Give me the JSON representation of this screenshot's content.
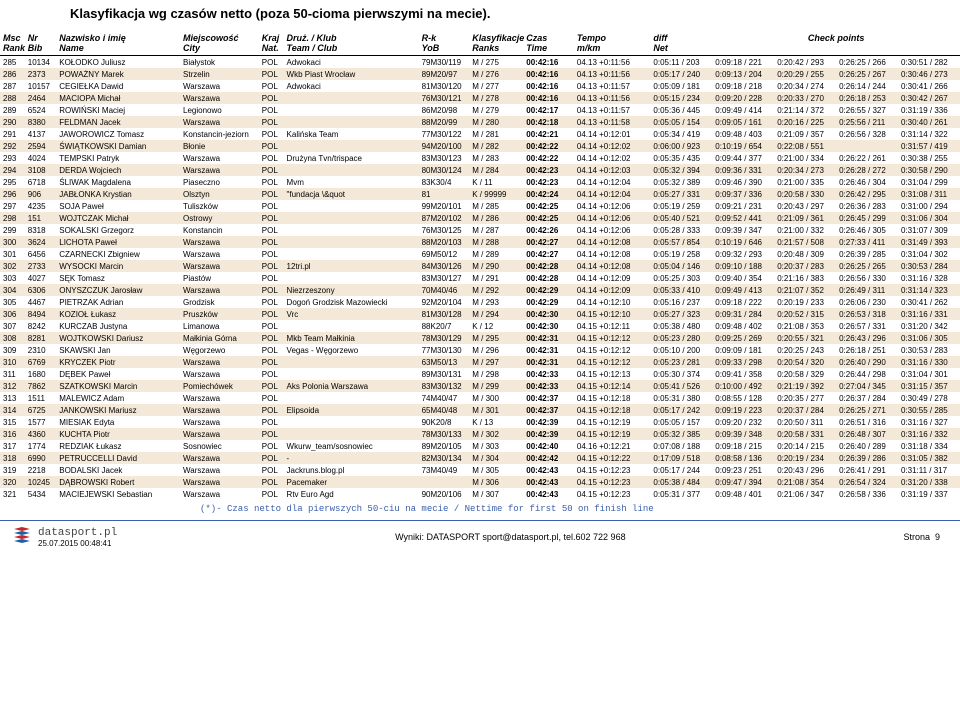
{
  "title": "Klasyfikacja wg czasów netto (poza 50-cioma pierwszymi na mecie).",
  "header": {
    "msc": "Msc",
    "rank": "Rank",
    "nr": "Nr",
    "bib": "Bib",
    "nameLabel": "Nazwisko i imię",
    "nameSub": "Name",
    "cityLabel": "Miejscowość",
    "citySub": "City",
    "krajLabel": "Kraj",
    "krajSub": "Nat.",
    "teamLabel": "Druż. / Klub",
    "teamSub": "Team / Club",
    "rkLabel": "R-k",
    "rkSub": "YoB",
    "ranksLabel": "Klasyfikacje",
    "ranksSub": "Ranks",
    "czasLabel": "Czas",
    "czasSub": "Time",
    "tempoLabel": "Tempo",
    "tempoSub": "m/km",
    "diffLabel": "diff",
    "diffSub": "Net",
    "checkLabel": "Check points"
  },
  "rows": [
    {
      "msc": "285",
      "bib": "10134",
      "name": "KOŁODKO Juliusz",
      "city": "Białystok",
      "nat": "POL",
      "team": "Adwokaci",
      "rk": "79M30/119",
      "yob": "M / 275",
      "time": "00:42:16",
      "tempo": "04.13 +0:11:56",
      "diff": "0:05:11 / 203",
      "cp": [
        "0:09:18 / 221",
        "0:20:42 / 293",
        "0:26:25 / 266",
        "0:30:51 / 282"
      ]
    },
    {
      "msc": "286",
      "bib": "2373",
      "name": "POWAŻNY Marek",
      "city": "Strzelin",
      "nat": "POL",
      "team": "Wkb Piast Wrocław",
      "rk": "89M20/97",
      "yob": "M / 276",
      "time": "00:42:16",
      "tempo": "04.13 +0:11:56",
      "diff": "0:05:17 / 240",
      "cp": [
        "0:09:13 / 204",
        "0:20:29 / 255",
        "0:26:25 / 267",
        "0:30:46 / 273"
      ]
    },
    {
      "msc": "287",
      "bib": "10157",
      "name": "CEGIEŁKA Dawid",
      "city": "Warszawa",
      "nat": "POL",
      "team": "Adwokaci",
      "rk": "81M30/120",
      "yob": "M / 277",
      "time": "00:42:16",
      "tempo": "04.13 +0:11:57",
      "diff": "0:05:09 / 181",
      "cp": [
        "0:09:18 / 218",
        "0:20:34 / 274",
        "0:26:14 / 244",
        "0:30:41 / 266"
      ]
    },
    {
      "msc": "288",
      "bib": "2464",
      "name": "MACIOPA Michał",
      "city": "Warszawa",
      "nat": "POL",
      "team": "",
      "rk": "76M30/121",
      "yob": "M / 278",
      "time": "00:42:16",
      "tempo": "04.13 +0:11:56",
      "diff": "0:05:15 / 234",
      "cp": [
        "0:09:20 / 228",
        "0:20:33 / 270",
        "0:26:18 / 253",
        "0:30:42 / 267"
      ]
    },
    {
      "msc": "289",
      "bib": "6524",
      "name": "ROWIŃSKI Maciej",
      "city": "Legionowo",
      "nat": "POL",
      "team": "",
      "rk": "86M20/98",
      "yob": "M / 279",
      "time": "00:42:17",
      "tempo": "04.13 +0:11:57",
      "diff": "0:05:36 / 445",
      "cp": [
        "0:09:49 / 414",
        "0:21:14 / 372",
        "0:26:55 / 327",
        "0:31:19 / 336"
      ]
    },
    {
      "msc": "290",
      "bib": "8380",
      "name": "FELDMAN Jacek",
      "city": "Warszawa",
      "nat": "POL",
      "team": "",
      "rk": "88M20/99",
      "yob": "M / 280",
      "time": "00:42:18",
      "tempo": "04.13 +0:11:58",
      "diff": "0:05:05 / 154",
      "cp": [
        "0:09:05 / 161",
        "0:20:16 / 225",
        "0:25:56 / 211",
        "0:30:40 / 261"
      ]
    },
    {
      "msc": "291",
      "bib": "4137",
      "name": "JAWOROWICZ Tomasz",
      "city": "Konstancin-jeziorn",
      "nat": "POL",
      "team": "Kalińska Team",
      "rk": "77M30/122",
      "yob": "M / 281",
      "time": "00:42:21",
      "tempo": "04.14 +0:12:01",
      "diff": "0:05:34 / 419",
      "cp": [
        "0:09:48 / 403",
        "0:21:09 / 357",
        "0:26:56 / 328",
        "0:31:14 / 322"
      ]
    },
    {
      "msc": "292",
      "bib": "2594",
      "name": "ŚWIĄTKOWSKI Damian",
      "city": "Błonie",
      "nat": "POL",
      "team": "",
      "rk": "94M20/100",
      "yob": "M / 282",
      "time": "00:42:22",
      "tempo": "04.14 +0:12:02",
      "diff": "0:06:00 / 923",
      "cp": [
        "0:10:19 / 654",
        "0:22:08 / 551",
        "",
        "0:31:57 / 419"
      ]
    },
    {
      "msc": "293",
      "bib": "4024",
      "name": "TEMPSKI Patryk",
      "city": "Warszawa",
      "nat": "POL",
      "team": "Drużyna Tvn/trispace",
      "rk": "83M30/123",
      "yob": "M / 283",
      "time": "00:42:22",
      "tempo": "04.14 +0:12:02",
      "diff": "0:05:35 / 435",
      "cp": [
        "0:09:44 / 377",
        "0:21:00 / 334",
        "0:26:22 / 261",
        "0:30:38 / 255"
      ]
    },
    {
      "msc": "294",
      "bib": "3108",
      "name": "DERDA Wojciech",
      "city": "Warszawa",
      "nat": "POL",
      "team": "",
      "rk": "80M30/124",
      "yob": "M / 284",
      "time": "00:42:23",
      "tempo": "04.14 +0:12:03",
      "diff": "0:05:32 / 394",
      "cp": [
        "0:09:36 / 331",
        "0:20:34 / 273",
        "0:26:28 / 272",
        "0:30:58 / 290"
      ]
    },
    {
      "msc": "295",
      "bib": "6718",
      "name": "ŚLIWAK Magdalena",
      "city": "Piaseczno",
      "nat": "POL",
      "team": "Mvm",
      "rk": "83K30/4",
      "yob": "K / 11",
      "time": "00:42:23",
      "tempo": "04.14 +0:12:04",
      "diff": "0:05:32 / 389",
      "cp": [
        "0:09:46 / 390",
        "0:21:00 / 335",
        "0:26:46 / 304",
        "0:31:04 / 299"
      ]
    },
    {
      "msc": "296",
      "bib": "906",
      "name": "JABŁONKA Krystian",
      "city": "Olsztyn",
      "nat": "POL",
      "team": "\"fundacja \\&quot",
      "rk": "81",
      "yob": "K / 99999",
      "time": "00:42:24",
      "tempo": "04.14 +0:12:04",
      "diff": "0:05:27 / 331",
      "cp": [
        "0:09:37 / 336",
        "0:20:58 / 330",
        "0:26:42 / 295",
        "0:31:08 / 311"
      ]
    },
    {
      "msc": "297",
      "bib": "4235",
      "name": "SOJA Paweł",
      "city": "Tuliszków",
      "nat": "POL",
      "team": "",
      "rk": "99M20/101",
      "yob": "M / 285",
      "time": "00:42:25",
      "tempo": "04.14 +0:12:06",
      "diff": "0:05:19 / 259",
      "cp": [
        "0:09:21 / 231",
        "0:20:43 / 297",
        "0:26:36 / 283",
        "0:31:00 / 294"
      ]
    },
    {
      "msc": "298",
      "bib": "151",
      "name": "WOJTCZAK Michał",
      "city": "Ostrowy",
      "nat": "POL",
      "team": "",
      "rk": "87M20/102",
      "yob": "M / 286",
      "time": "00:42:25",
      "tempo": "04.14 +0:12:06",
      "diff": "0:05:40 / 521",
      "cp": [
        "0:09:52 / 441",
        "0:21:09 / 361",
        "0:26:45 / 299",
        "0:31:06 / 304"
      ]
    },
    {
      "msc": "299",
      "bib": "8318",
      "name": "SOKALSKI Grzegorz",
      "city": "Konstancin",
      "nat": "POL",
      "team": "",
      "rk": "76M30/125",
      "yob": "M / 287",
      "time": "00:42:26",
      "tempo": "04.14 +0:12:06",
      "diff": "0:05:28 / 333",
      "cp": [
        "0:09:39 / 347",
        "0:21:00 / 332",
        "0:26:46 / 305",
        "0:31:07 / 309"
      ]
    },
    {
      "msc": "300",
      "bib": "3624",
      "name": "LICHOTA Paweł",
      "city": "Warszawa",
      "nat": "POL",
      "team": "",
      "rk": "88M20/103",
      "yob": "M / 288",
      "time": "00:42:27",
      "tempo": "04.14 +0:12:08",
      "diff": "0:05:57 / 854",
      "cp": [
        "0:10:19 / 646",
        "0:21:57 / 508",
        "0:27:33 / 411",
        "0:31:49 / 393"
      ]
    },
    {
      "msc": "301",
      "bib": "6456",
      "name": "CZARNECKI Zbigniew",
      "city": "Warszawa",
      "nat": "POL",
      "team": "",
      "rk": "69M50/12",
      "yob": "M / 289",
      "time": "00:42:27",
      "tempo": "04.14 +0:12:08",
      "diff": "0:05:19 / 258",
      "cp": [
        "0:09:32 / 293",
        "0:20:48 / 309",
        "0:26:39 / 285",
        "0:31:04 / 302"
      ]
    },
    {
      "msc": "302",
      "bib": "2733",
      "name": "WYSOCKI Marcin",
      "city": "Warszawa",
      "nat": "POL",
      "team": "12tri.pl",
      "rk": "84M30/126",
      "yob": "M / 290",
      "time": "00:42:28",
      "tempo": "04.14 +0:12:08",
      "diff": "0:05:04 / 146",
      "cp": [
        "0:09:10 / 188",
        "0:20:37 / 283",
        "0:26:25 / 265",
        "0:30:53 / 284"
      ]
    },
    {
      "msc": "303",
      "bib": "4027",
      "name": "SĘK Tomasz",
      "city": "Piastów",
      "nat": "POL",
      "team": "",
      "rk": "83M30/127",
      "yob": "M / 291",
      "time": "00:42:28",
      "tempo": "04.14 +0:12:09",
      "diff": "0:05:25 / 303",
      "cp": [
        "0:09:40 / 354",
        "0:21:16 / 383",
        "0:26:56 / 330",
        "0:31:16 / 328"
      ]
    },
    {
      "msc": "304",
      "bib": "6306",
      "name": "ONYSZCZUK Jarosław",
      "city": "Warszawa",
      "nat": "POL",
      "team": "Niezrzeszony",
      "rk": "70M40/46",
      "yob": "M / 292",
      "time": "00:42:29",
      "tempo": "04.14 +0:12:09",
      "diff": "0:05:33 / 410",
      "cp": [
        "0:09:49 / 413",
        "0:21:07 / 352",
        "0:26:49 / 311",
        "0:31:14 / 323"
      ]
    },
    {
      "msc": "305",
      "bib": "4467",
      "name": "PIETRZAK Adrian",
      "city": "Grodzisk",
      "nat": "POL",
      "team": "Dogoń Grodzisk Mazowiecki",
      "rk": "92M20/104",
      "yob": "M / 293",
      "time": "00:42:29",
      "tempo": "04.14 +0:12:10",
      "diff": "0:05:16 / 237",
      "cp": [
        "0:09:18 / 222",
        "0:20:19 / 233",
        "0:26:06 / 230",
        "0:30:41 / 262"
      ]
    },
    {
      "msc": "306",
      "bib": "8494",
      "name": "KOZIOŁ Łukasz",
      "city": "Pruszków",
      "nat": "POL",
      "team": "Vrc",
      "rk": "81M30/128",
      "yob": "M / 294",
      "time": "00:42:30",
      "tempo": "04.15 +0:12:10",
      "diff": "0:05:27 / 323",
      "cp": [
        "0:09:31 / 284",
        "0:20:52 / 315",
        "0:26:53 / 318",
        "0:31:16 / 331"
      ]
    },
    {
      "msc": "307",
      "bib": "8242",
      "name": "KURCZAB Justyna",
      "city": "Limanowa",
      "nat": "POL",
      "team": "",
      "rk": "88K20/7",
      "yob": "K / 12",
      "time": "00:42:30",
      "tempo": "04.15 +0:12:11",
      "diff": "0:05:38 / 480",
      "cp": [
        "0:09:48 / 402",
        "0:21:08 / 353",
        "0:26:57 / 331",
        "0:31:20 / 342"
      ]
    },
    {
      "msc": "308",
      "bib": "8281",
      "name": "WOJTKOWSKI Dariusz",
      "city": "Małkinia Górna",
      "nat": "POL",
      "team": "Mkb Team Małkinia",
      "rk": "78M30/129",
      "yob": "M / 295",
      "time": "00:42:31",
      "tempo": "04.15 +0:12:12",
      "diff": "0:05:23 / 280",
      "cp": [
        "0:09:25 / 269",
        "0:20:55 / 321",
        "0:26:43 / 296",
        "0:31:06 / 305"
      ]
    },
    {
      "msc": "309",
      "bib": "2310",
      "name": "SKAWSKI Jan",
      "city": "Węgorzewo",
      "nat": "POL",
      "team": "Vegas - Węgorzewo",
      "rk": "77M30/130",
      "yob": "M / 296",
      "time": "00:42:31",
      "tempo": "04.15 +0:12:12",
      "diff": "0:05:10 / 200",
      "cp": [
        "0:09:09 / 181",
        "0:20:25 / 243",
        "0:26:18 / 251",
        "0:30:53 / 283"
      ]
    },
    {
      "msc": "310",
      "bib": "6769",
      "name": "KRYCZEK Piotr",
      "city": "Warszawa",
      "nat": "POL",
      "team": "",
      "rk": "63M50/13",
      "yob": "M / 297",
      "time": "00:42:31",
      "tempo": "04.15 +0:12:12",
      "diff": "0:05:23 / 281",
      "cp": [
        "0:09:33 / 298",
        "0:20:54 / 320",
        "0:26:40 / 290",
        "0:31:16 / 330"
      ]
    },
    {
      "msc": "311",
      "bib": "1680",
      "name": "DĘBEK Paweł",
      "city": "Warszawa",
      "nat": "POL",
      "team": "",
      "rk": "89M30/131",
      "yob": "M / 298",
      "time": "00:42:33",
      "tempo": "04.15 +0:12:13",
      "diff": "0:05:30 / 374",
      "cp": [
        "0:09:41 / 358",
        "0:20:58 / 329",
        "0:26:44 / 298",
        "0:31:04 / 301"
      ]
    },
    {
      "msc": "312",
      "bib": "7862",
      "name": "SZATKOWSKI Marcin",
      "city": "Pomiechówek",
      "nat": "POL",
      "team": "Aks Polonia Warszawa",
      "rk": "83M30/132",
      "yob": "M / 299",
      "time": "00:42:33",
      "tempo": "04.15 +0:12:14",
      "diff": "0:05:41 / 526",
      "cp": [
        "0:10:00 / 492",
        "0:21:19 / 392",
        "0:27:04 / 345",
        "0:31:15 / 357"
      ]
    },
    {
      "msc": "313",
      "bib": "1511",
      "name": "MALEWICZ Adam",
      "city": "Warszawa",
      "nat": "POL",
      "team": "",
      "rk": "74M40/47",
      "yob": "M / 300",
      "time": "00:42:37",
      "tempo": "04.15 +0:12:18",
      "diff": "0:05:31 / 380",
      "cp": [
        "0:08:55 / 128",
        "0:20:35 / 277",
        "0:26:37 / 284",
        "0:30:49 / 278"
      ]
    },
    {
      "msc": "314",
      "bib": "6725",
      "name": "JANKOWSKI Mariusz",
      "city": "Warszawa",
      "nat": "POL",
      "team": "Elipsoida",
      "rk": "65M40/48",
      "yob": "M / 301",
      "time": "00:42:37",
      "tempo": "04.15 +0:12:18",
      "diff": "0:05:17 / 242",
      "cp": [
        "0:09:19 / 223",
        "0:20:37 / 284",
        "0:26:25 / 271",
        "0:30:55 / 285"
      ]
    },
    {
      "msc": "315",
      "bib": "1577",
      "name": "MIESIAK Edyta",
      "city": "Warszawa",
      "nat": "POL",
      "team": "",
      "rk": "90K20/8",
      "yob": "K / 13",
      "time": "00:42:39",
      "tempo": "04.15 +0:12:19",
      "diff": "0:05:05 / 157",
      "cp": [
        "0:09:20 / 232",
        "0:20:50 / 311",
        "0:26:51 / 316",
        "0:31:16 / 327"
      ]
    },
    {
      "msc": "316",
      "bib": "4360",
      "name": "KUCHTA Piotr",
      "city": "Warszawa",
      "nat": "POL",
      "team": "",
      "rk": "78M30/133",
      "yob": "M / 302",
      "time": "00:42:39",
      "tempo": "04.15 +0:12:19",
      "diff": "0:05:32 / 385",
      "cp": [
        "0:09:39 / 348",
        "0:20:58 / 331",
        "0:26:48 / 307",
        "0:31:16 / 332"
      ]
    },
    {
      "msc": "317",
      "bib": "1774",
      "name": "REDZIAK Łukasz",
      "city": "Sosnowiec",
      "nat": "POL",
      "team": "Wkurw_team/sosnowiec",
      "rk": "89M20/105",
      "yob": "M / 303",
      "time": "00:42:40",
      "tempo": "04.16 +0:12:21",
      "diff": "0:07:08 / 188",
      "cp": [
        "0:09:18 / 215",
        "0:20:14 / 215",
        "0:26:40 / 289",
        "0:31:18 / 334"
      ]
    },
    {
      "msc": "318",
      "bib": "6990",
      "name": "PETRUCCELLI David",
      "city": "Warszawa",
      "nat": "POL",
      "team": "-",
      "rk": "82M30/134",
      "yob": "M / 304",
      "time": "00:42:42",
      "tempo": "04.15 +0:12:22",
      "diff": "0:17:09 / 518",
      "cp": [
        "0:08:58 / 136",
        "0:20:19 / 234",
        "0:26:39 / 286",
        "0:31:05 / 382"
      ]
    },
    {
      "msc": "319",
      "bib": "2218",
      "name": "BODALSKI Jacek",
      "city": "Warszawa",
      "nat": "POL",
      "team": "Jackruns.blog.pl",
      "rk": "73M40/49",
      "yob": "M / 305",
      "time": "00:42:43",
      "tempo": "04.15 +0:12:23",
      "diff": "0:05:17 / 244",
      "cp": [
        "0:09:23 / 251",
        "0:20:43 / 296",
        "0:26:41 / 291",
        "0:31:11 / 317"
      ]
    },
    {
      "msc": "320",
      "bib": "10245",
      "name": "DĄBROWSKI Robert",
      "city": "Warszawa",
      "nat": "POL",
      "team": "Pacemaker",
      "rk": "",
      "yob": "M / 306",
      "time": "00:42:43",
      "tempo": "04.15 +0:12:23",
      "diff": "0:05:38 / 484",
      "cp": [
        "0:09:47 / 394",
        "0:21:08 / 354",
        "0:26:54 / 324",
        "0:31:20 / 338"
      ]
    },
    {
      "msc": "321",
      "bib": "5434",
      "name": "MACIEJEWSKI Sebastian",
      "city": "Warszawa",
      "nat": "POL",
      "team": "Rtv Euro Agd",
      "rk": "90M20/106",
      "yob": "M / 307",
      "time": "00:42:43",
      "tempo": "04.15 +0:12:23",
      "diff": "0:05:31 / 377",
      "cp": [
        "0:09:48 / 401",
        "0:21:06 / 347",
        "0:26:58 / 336",
        "0:31:19 / 337"
      ]
    }
  ],
  "footnote": "(*)- Czas netto dla pierwszych 50-ciu na mecie / Nettime for first 50 on finish line",
  "footer": {
    "site": "datasport.pl",
    "date": "25.07.2015 00:48:41",
    "center": "Wyniki: DATASPORT sport@datasport.pl, tel.602 722 968",
    "pageLabel": "Strona",
    "pageNum": "9"
  },
  "colors": {
    "evenRow": "#f4e9d8",
    "footnote": "#3b5faa",
    "logoBlue": "#1e5fa6",
    "logoRed": "#c1272d"
  }
}
